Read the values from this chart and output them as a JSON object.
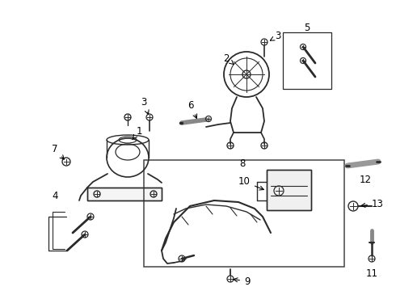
{
  "bg_color": "#ffffff",
  "line_color": "#2a2a2a",
  "figsize": [
    4.9,
    3.6
  ],
  "dpi": 100,
  "label_fs": 8.5,
  "parts_font": "DejaVu Sans"
}
